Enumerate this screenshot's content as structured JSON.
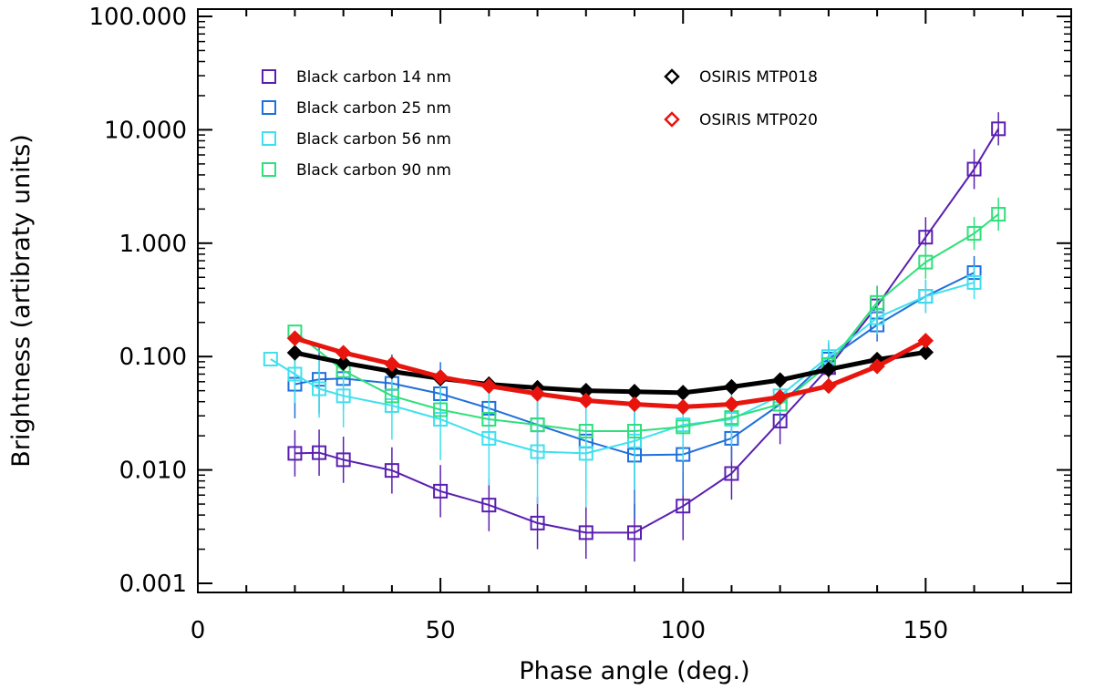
{
  "chart_data": {
    "type": "line",
    "xlabel": "Phase angle (deg.)",
    "ylabel": "Brightness (artibraty units)",
    "xlim": [
      0,
      180
    ],
    "ylim": [
      0.001,
      100
    ],
    "yscale": "log",
    "grid": false,
    "legend_placement": "top-left",
    "x_ticks": [
      0,
      50,
      100,
      150
    ],
    "x_tick_labels": [
      "0",
      "50",
      "100",
      "150"
    ],
    "y_ticks": [
      0.001,
      0.01,
      0.1,
      1,
      10,
      100
    ],
    "y_tick_labels": [
      "0.001",
      "0.010",
      "0.100",
      "1.000",
      "10.000",
      "100.000"
    ],
    "series": [
      {
        "name": "Black carbon 14 nm",
        "color": "#5a1fb0",
        "marker": "square",
        "line_weight": "thin",
        "x": [
          20,
          25,
          30,
          40,
          50,
          60,
          70,
          80,
          90,
          100,
          110,
          120,
          130,
          140,
          150,
          160,
          165
        ],
        "y": [
          0.014,
          0.0142,
          0.0123,
          0.0099,
          0.0065,
          0.0049,
          0.0034,
          0.0028,
          0.0028,
          0.0048,
          0.0093,
          0.027,
          0.08,
          0.28,
          1.13,
          4.5,
          10.2
        ],
        "err_factor": [
          1.6,
          1.6,
          1.6,
          1.6,
          1.7,
          1.7,
          1.7,
          1.7,
          1.8,
          2.0,
          1.7,
          1.6,
          1.6,
          1.5,
          1.5,
          1.5,
          1.4
        ]
      },
      {
        "name": "Black carbon 25 nm",
        "color": "#1f6fdc",
        "marker": "square",
        "line_weight": "thin",
        "x": [
          20,
          25,
          30,
          40,
          50,
          60,
          70,
          80,
          90,
          100,
          110,
          120,
          130,
          140,
          150,
          160
        ],
        "y": [
          0.057,
          0.063,
          0.064,
          0.058,
          0.047,
          0.035,
          0.025,
          0.018,
          0.0135,
          0.0137,
          0.019,
          0.038,
          0.095,
          0.19,
          0.34,
          0.55
        ],
        "err_factor": [
          2.0,
          2.0,
          1.9,
          1.8,
          1.9,
          1.9,
          2.2,
          2.6,
          3.6,
          2.3,
          1.6,
          1.4,
          1.4,
          1.4,
          1.4,
          1.4
        ]
      },
      {
        "name": "Black carbon 56 nm",
        "color": "#3fe0ee",
        "marker": "square",
        "line_weight": "thin",
        "x": [
          15,
          20,
          25,
          30,
          40,
          50,
          60,
          70,
          80,
          90,
          100,
          110,
          120,
          130,
          140,
          150,
          160
        ],
        "y": [
          0.095,
          0.07,
          0.052,
          0.045,
          0.037,
          0.028,
          0.019,
          0.0145,
          0.014,
          0.018,
          0.025,
          0.028,
          0.045,
          0.1,
          0.22,
          0.34,
          0.45
        ],
        "err_factor": [
          1.0,
          1.8,
          1.8,
          1.9,
          2.0,
          2.3,
          2.6,
          2.9,
          3.0,
          2.7,
          2.1,
          1.7,
          1.4,
          1.4,
          1.4,
          1.4,
          1.4
        ]
      },
      {
        "name": "Black carbon 90 nm",
        "color": "#2ee07a",
        "marker": "square",
        "line_weight": "thin",
        "x": [
          20,
          30,
          40,
          50,
          60,
          70,
          80,
          90,
          100,
          110,
          120,
          130,
          140,
          150,
          160,
          165
        ],
        "y": [
          0.165,
          0.075,
          0.045,
          0.034,
          0.028,
          0.025,
          0.022,
          0.022,
          0.024,
          0.029,
          0.038,
          0.085,
          0.3,
          0.68,
          1.22,
          1.8
        ],
        "err_factor": [
          1.0,
          1.0,
          1.0,
          1.0,
          1.0,
          1.0,
          1.0,
          1.0,
          1.0,
          1.0,
          1.0,
          1.0,
          1.4,
          1.4,
          1.4,
          1.4
        ]
      },
      {
        "name": "OSIRIS MTP018",
        "color": "#000000",
        "marker": "diamond",
        "line_weight": "thick",
        "x": [
          20,
          30,
          40,
          50,
          60,
          70,
          80,
          90,
          100,
          110,
          120,
          130,
          140,
          150
        ],
        "y": [
          0.108,
          0.088,
          0.074,
          0.064,
          0.057,
          0.053,
          0.05,
          0.049,
          0.048,
          0.054,
          0.062,
          0.077,
          0.094,
          0.109
        ]
      },
      {
        "name": "OSIRIS MTP020",
        "color": "#e8140e",
        "marker": "diamond",
        "line_weight": "thick",
        "x": [
          20,
          30,
          40,
          50,
          60,
          70,
          80,
          90,
          100,
          110,
          120,
          130,
          140,
          150
        ],
        "y": [
          0.145,
          0.108,
          0.086,
          0.066,
          0.055,
          0.047,
          0.041,
          0.038,
          0.036,
          0.038,
          0.044,
          0.055,
          0.082,
          0.138
        ]
      }
    ]
  }
}
